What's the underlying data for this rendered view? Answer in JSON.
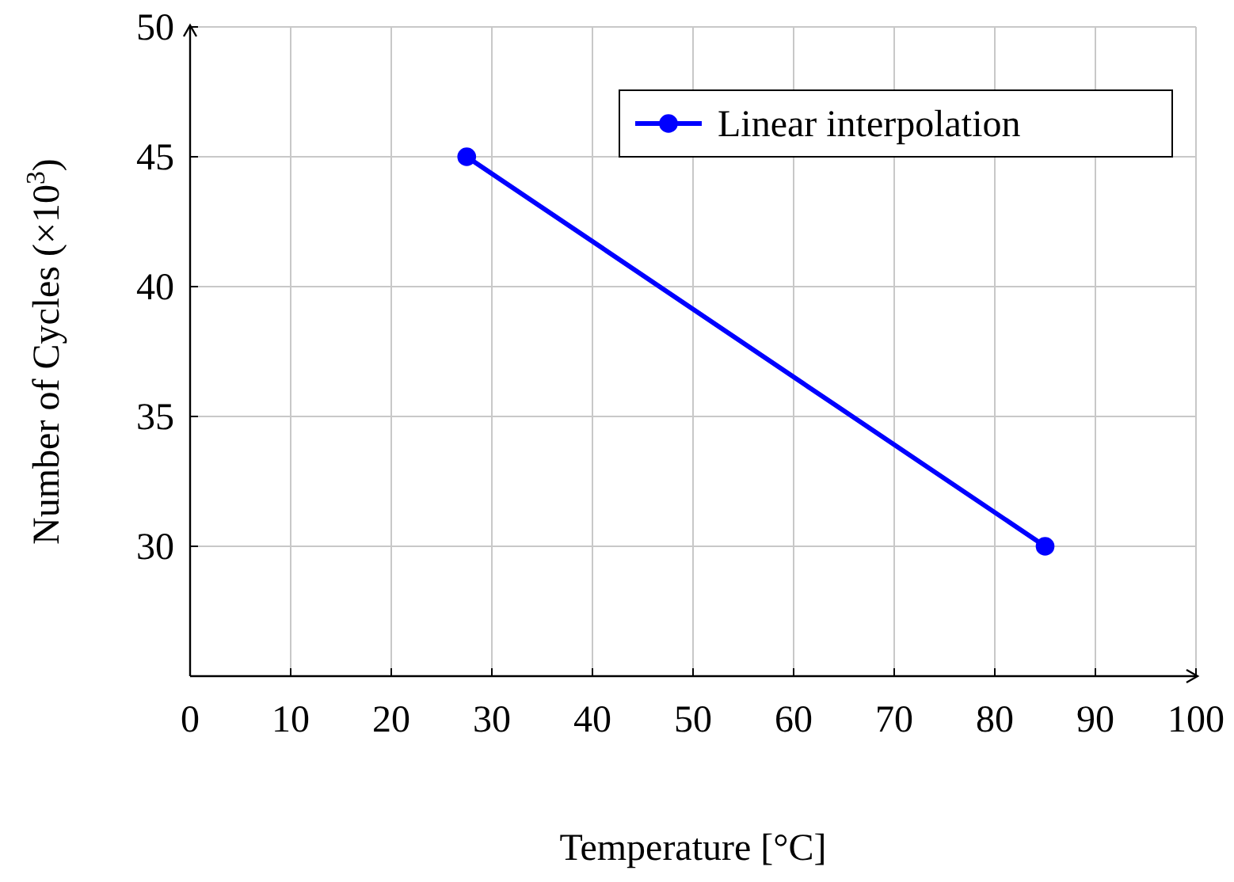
{
  "chart_data": {
    "type": "line",
    "xlabel": "Temperature [°C]",
    "ylabel": "Number of Cycles (×10$^{3}$)",
    "xlim": [
      0,
      100
    ],
    "xticks": [
      0,
      10,
      20,
      30,
      40,
      50,
      60,
      70,
      80,
      90,
      100
    ],
    "ylim": [
      25,
      50
    ],
    "yticks": [
      {
        "value": 25,
        "label": null
      },
      30,
      35,
      40,
      45,
      50
    ],
    "grid": true,
    "legend": "top right",
    "marker": "circle",
    "line_style": "solid",
    "series": [
      {
        "name": "Linear interpolation",
        "color": "#0000ff",
        "x": [
          27.5,
          85
        ],
        "values": [
          45,
          30
        ]
      }
    ]
  }
}
